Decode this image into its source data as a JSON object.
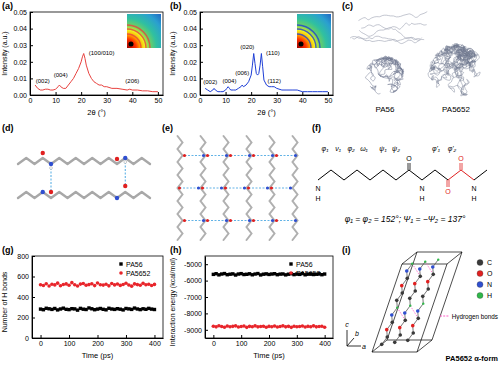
{
  "chart_data": [
    {
      "type": "line",
      "title": "(a)",
      "x_label": "2θ (°)",
      "y_label": "Intensity (a.u.)",
      "x": [
        2,
        3,
        4,
        5,
        6,
        7,
        8,
        9,
        10,
        11,
        11.5,
        12,
        13,
        14,
        15,
        16,
        17,
        18,
        19,
        20,
        20.5,
        21,
        21.5,
        22,
        23,
        24,
        25,
        26,
        27,
        28,
        29,
        30,
        32,
        34,
        36,
        38,
        39,
        40,
        42,
        44,
        46,
        48,
        50
      ],
      "values": [
        0.006,
        0.004,
        0.003,
        0.003,
        0.0035,
        0.0035,
        0.003,
        0.003,
        0.0035,
        0.005,
        0.006,
        0.005,
        0.004,
        0.004,
        0.006,
        0.008,
        0.01,
        0.013,
        0.016,
        0.02,
        0.023,
        0.025,
        0.022,
        0.018,
        0.013,
        0.01,
        0.008,
        0.007,
        0.006,
        0.006,
        0.005,
        0.005,
        0.004,
        0.004,
        0.0035,
        0.003,
        0.0035,
        0.003,
        0.003,
        0.0025,
        0.0025,
        0.002,
        0.002
      ],
      "color": "#e8423f",
      "xlim": [
        0,
        52
      ],
      "xticks": [
        0,
        10,
        20,
        30,
        40,
        50
      ],
      "ylim": [
        0,
        0.05
      ],
      "yticks": [
        {
          "value": 0,
          "label": "0.00"
        },
        {
          "value": 0.01,
          "label": "0.01"
        },
        {
          "value": 0.02,
          "label": "0.02"
        },
        {
          "value": 0.03,
          "label": "0.03"
        },
        {
          "value": 0.04,
          "label": "0.04"
        },
        {
          "value": 0.05,
          "label": "0.05"
        }
      ],
      "annotations": [
        {
          "text": "(002)",
          "x": 5,
          "y": 0.0075
        },
        {
          "text": "(004)",
          "x": 12,
          "y": 0.011
        },
        {
          "text": "(100/010)",
          "x": 28,
          "y": 0.024
        },
        {
          "text": "(206)",
          "x": 40,
          "y": 0.007
        }
      ]
    },
    {
      "type": "line",
      "title": "(b)",
      "x_label": "2θ (°)",
      "y_label": "Intensity (a.u.)",
      "x": [
        2,
        3,
        4,
        5,
        5.5,
        6,
        7,
        8,
        9,
        10,
        10.5,
        11,
        11.5,
        12,
        13,
        14,
        15,
        16,
        16.5,
        17,
        18,
        19,
        20,
        20.5,
        21,
        21.5,
        22,
        22.5,
        23,
        23.5,
        24,
        24.5,
        25,
        26,
        27,
        28,
        29,
        30,
        32,
        34,
        36,
        38,
        40,
        42,
        44,
        46,
        48,
        50
      ],
      "values": [
        0.004,
        0.003,
        0.002,
        0.003,
        0.004,
        0.003,
        0.002,
        0.002,
        0.002,
        0.003,
        0.004,
        0.005,
        0.004,
        0.003,
        0.003,
        0.003,
        0.004,
        0.005,
        0.006,
        0.005,
        0.006,
        0.008,
        0.012,
        0.018,
        0.025,
        0.019,
        0.013,
        0.012,
        0.013,
        0.018,
        0.025,
        0.017,
        0.009,
        0.006,
        0.005,
        0.005,
        0.005,
        0.004,
        0.003,
        0.003,
        0.003,
        0.003,
        0.002,
        0.002,
        0.002,
        0.002,
        0.002,
        0.002
      ],
      "color": "#1f3fd6",
      "xlim": [
        0,
        52
      ],
      "xticks": [
        0,
        10,
        20,
        30,
        40,
        50
      ],
      "ylim": [
        0,
        0.05
      ],
      "yticks": [
        {
          "value": 0,
          "label": "0.00"
        },
        {
          "value": 0.01,
          "label": "0.01"
        },
        {
          "value": 0.02,
          "label": "0.02"
        },
        {
          "value": 0.03,
          "label": "0.03"
        },
        {
          "value": 0.04,
          "label": "0.04"
        },
        {
          "value": 0.05,
          "label": "0.05"
        }
      ],
      "annotations": [
        {
          "text": "(002)",
          "x": 4,
          "y": 0.0065
        },
        {
          "text": "(004)",
          "x": 11.5,
          "y": 0.0075
        },
        {
          "text": "(006)",
          "x": 16.5,
          "y": 0.012
        },
        {
          "text": "(020)",
          "x": 18.5,
          "y": 0.028
        },
        {
          "text": "(110)",
          "x": 28.5,
          "y": 0.024
        },
        {
          "text": "(112)",
          "x": 29,
          "y": 0.0075
        }
      ]
    },
    {
      "type": "scatter",
      "title": "(g)",
      "x_label": "Time (ps)",
      "y_label": "Number of H bonds",
      "x": [
        0,
        10,
        20,
        30,
        40,
        50,
        60,
        70,
        80,
        90,
        100,
        110,
        120,
        130,
        140,
        150,
        160,
        170,
        180,
        190,
        200,
        210,
        220,
        230,
        240,
        250,
        260,
        270,
        280,
        290,
        300,
        310,
        320,
        330,
        340,
        350,
        360,
        370,
        380,
        390,
        400
      ],
      "series": [
        {
          "name": "PA56",
          "color": "#000000",
          "marker": "square",
          "values": [
            282,
            276,
            290,
            285,
            279,
            288,
            274,
            283,
            291,
            280,
            277,
            286,
            284,
            272,
            289,
            281,
            278,
            293,
            285,
            276,
            282,
            288,
            280,
            275,
            290,
            283,
            279,
            286,
            281,
            274,
            288,
            284,
            279,
            292,
            283,
            277,
            285,
            280,
            289,
            282,
            278
          ]
        },
        {
          "name": "PA5652",
          "color": "#e8252b",
          "marker": "circle",
          "values": [
            520,
            512,
            530,
            508,
            525,
            518,
            535,
            510,
            522,
            528,
            515,
            540,
            519,
            507,
            526,
            532,
            514,
            521,
            529,
            511,
            537,
            520,
            516,
            524,
            509,
            531,
            518,
            527,
            513,
            522,
            534,
            517,
            506,
            528,
            521,
            515,
            533,
            519,
            525,
            512,
            523
          ]
        }
      ],
      "xlim": [
        -30,
        430
      ],
      "xticks": [
        0,
        100,
        200,
        300,
        400
      ],
      "ylim": [
        0,
        800
      ],
      "yticks": [
        0,
        200,
        400,
        600,
        800
      ],
      "legend": "top-right"
    },
    {
      "type": "scatter",
      "title": "(h)",
      "x_label": "Time (ps)",
      "y_label": "Interaction energy (kcal/mol)",
      "x": [
        0,
        10,
        20,
        30,
        40,
        50,
        60,
        70,
        80,
        90,
        100,
        110,
        120,
        130,
        140,
        150,
        160,
        170,
        180,
        190,
        200,
        210,
        220,
        230,
        240,
        250,
        260,
        270,
        280,
        290,
        300,
        310,
        320,
        330,
        340,
        350,
        360,
        370,
        380,
        390,
        400
      ],
      "series": [
        {
          "name": "PA56",
          "color": "#000000",
          "marker": "square",
          "values": [
            -5620,
            -5580,
            -5650,
            -5600,
            -5570,
            -5640,
            -5610,
            -5590,
            -5660,
            -5600,
            -5575,
            -5630,
            -5615,
            -5585,
            -5645,
            -5600,
            -5570,
            -5655,
            -5610,
            -5590,
            -5625,
            -5600,
            -5580,
            -5640,
            -5605,
            -5595,
            -5650,
            -5610,
            -5580,
            -5635,
            -5600,
            -5620,
            -5570,
            -5645,
            -5605,
            -5590,
            -5630,
            -5610,
            -5585,
            -5640,
            -5600
          ]
        },
        {
          "name": "PA5652",
          "color": "#e8252b",
          "marker": "circle",
          "values": [
            -8780,
            -8820,
            -8750,
            -8800,
            -8840,
            -8770,
            -8810,
            -8790,
            -8760,
            -8830,
            -8800,
            -8770,
            -8850,
            -8790,
            -8810,
            -8760,
            -8820,
            -8800,
            -8780,
            -8840,
            -8790,
            -8810,
            -8770,
            -8830,
            -8800,
            -8760,
            -8820,
            -8790,
            -8850,
            -8780,
            -8810,
            -8800,
            -8770,
            -8830,
            -8790,
            -8810,
            -8760,
            -8820,
            -8800,
            -8780,
            -8840
          ]
        }
      ],
      "xlim": [
        -30,
        430
      ],
      "xticks": [
        0,
        100,
        200,
        300,
        400
      ],
      "ylim": [
        -9500,
        -4500
      ],
      "yticks": [
        -9000,
        -8000,
        -7000,
        -6000,
        -5000
      ],
      "legend": "top-right"
    }
  ],
  "diagrams": {
    "c": {
      "panel": "(c)",
      "labels": [
        "PA56",
        "PA5652"
      ]
    },
    "d": {
      "panel": "(d)"
    },
    "e": {
      "panel": "(e)"
    },
    "f": {
      "panel": "(f)",
      "atoms": [
        "N",
        "H",
        "O",
        "N",
        "H",
        "O",
        "O",
        "N",
        "H"
      ],
      "torsions": [
        "φ₁",
        "ν₁",
        "φ₂",
        "ω₁",
        "ψ₁",
        "ψ₂",
        "φ'₁",
        "φ'₂"
      ],
      "equation": "φ₁ = φ₂ = 152°; Ψ₁ = −Ψ₂ = 137°"
    },
    "i": {
      "panel": "(i)",
      "title": "PA5652 α-form",
      "legend": [
        {
          "label": "C",
          "color": "#3a3a3a"
        },
        {
          "label": "O",
          "color": "#e02020"
        },
        {
          "label": "N",
          "color": "#2f4fd0"
        },
        {
          "label": "H",
          "color": "#2fb84a"
        }
      ],
      "hbond_label": "Hydrogen bonds",
      "hbond_color": "#ff5fc8",
      "axes": [
        "a",
        "b",
        "c"
      ]
    }
  }
}
